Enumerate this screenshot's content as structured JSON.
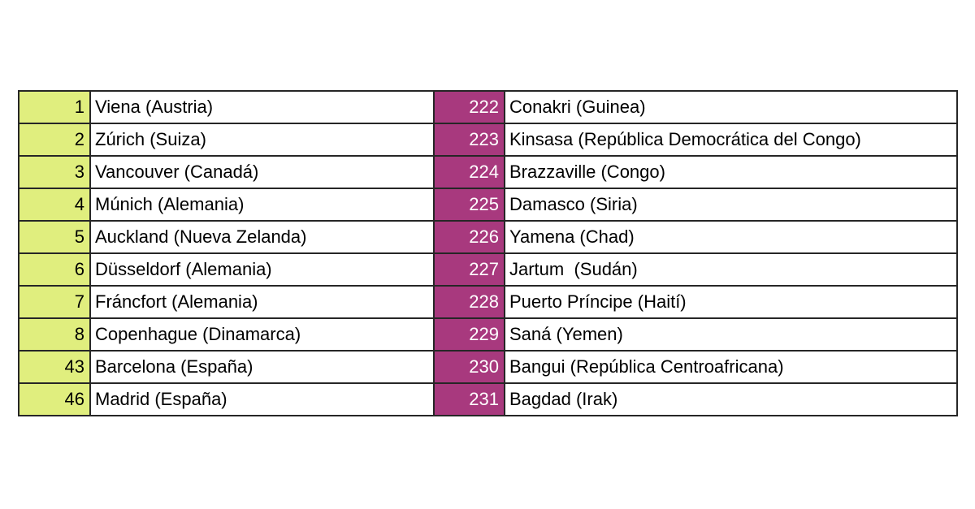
{
  "colors": {
    "page_bg": "#ffffff",
    "grid_border": "#262626",
    "top_rank_bg": "#e0ee7e",
    "top_rank_text": "#000000",
    "bottom_rank_bg": "#a8397e",
    "bottom_rank_text": "#ffffff"
  },
  "chart_data": {
    "type": "table",
    "columns": [
      "top_rank",
      "top_city",
      "bottom_rank",
      "bottom_city"
    ],
    "rows": [
      {
        "left_rank": "1",
        "left_city": "Viena (Austria)",
        "right_rank": "222",
        "right_city": "Conakri (Guinea)"
      },
      {
        "left_rank": "2",
        "left_city": "Zúrich (Suiza)",
        "right_rank": "223",
        "right_city": "Kinsasa (República Democrática del Congo)"
      },
      {
        "left_rank": "3",
        "left_city": "Vancouver (Canadá)",
        "right_rank": "224",
        "right_city": "Brazzaville (Congo)"
      },
      {
        "left_rank": "4",
        "left_city": "Múnich (Alemania)",
        "right_rank": "225",
        "right_city": "Damasco (Siria)"
      },
      {
        "left_rank": "5",
        "left_city": "Auckland (Nueva Zelanda)",
        "right_rank": "226",
        "right_city": "Yamena (Chad)"
      },
      {
        "left_rank": "6",
        "left_city": "Düsseldorf (Alemania)",
        "right_rank": "227",
        "right_city": "Jartum  (Sudán)"
      },
      {
        "left_rank": "7",
        "left_city": "Fráncfort (Alemania)",
        "right_rank": "228",
        "right_city": "Puerto Príncipe (Haití)"
      },
      {
        "left_rank": "8",
        "left_city": "Copenhague (Dinamarca)",
        "right_rank": "229",
        "right_city": "Saná (Yemen)"
      },
      {
        "left_rank": "43",
        "left_city": "Barcelona (España)",
        "right_rank": "230",
        "right_city": "Bangui (República Centroafricana)"
      },
      {
        "left_rank": "46",
        "left_city": "Madrid (España)",
        "right_rank": "231",
        "right_city": "Bagdad (Irak)"
      }
    ]
  }
}
